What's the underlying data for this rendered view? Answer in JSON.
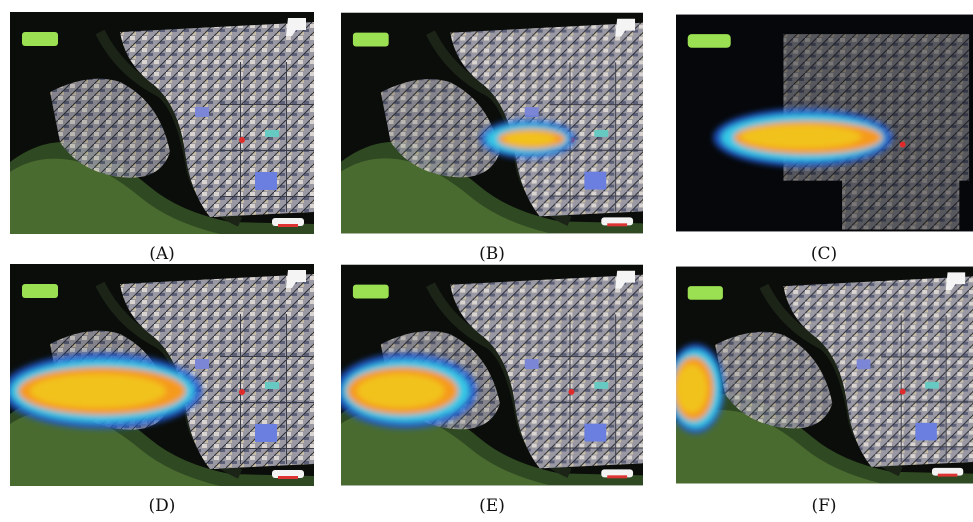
{
  "panels": [
    {
      "id": "A",
      "label": "(A)",
      "plume": "none"
    },
    {
      "id": "B",
      "label": "(B)",
      "plume": "short"
    },
    {
      "id": "C",
      "label": "(C)",
      "plume": "long-dark"
    },
    {
      "id": "D",
      "label": "(D)",
      "plume": "wide"
    },
    {
      "id": "E",
      "label": "(E)",
      "plume": "mid"
    },
    {
      "id": "F",
      "label": "(F)",
      "plume": "edge"
    }
  ],
  "colors": {
    "background_dark": "#0b0d0a",
    "vegetation": "#3d5a2a",
    "urban": "#b8b6b9",
    "plume_core": "#f2c21c",
    "plume_mid": "#f59a1d",
    "plume_edge": "#36c8e6",
    "plume_outer": "#1e5bd6",
    "marker_green": "#9be052",
    "source_red": "#e02a2a"
  }
}
